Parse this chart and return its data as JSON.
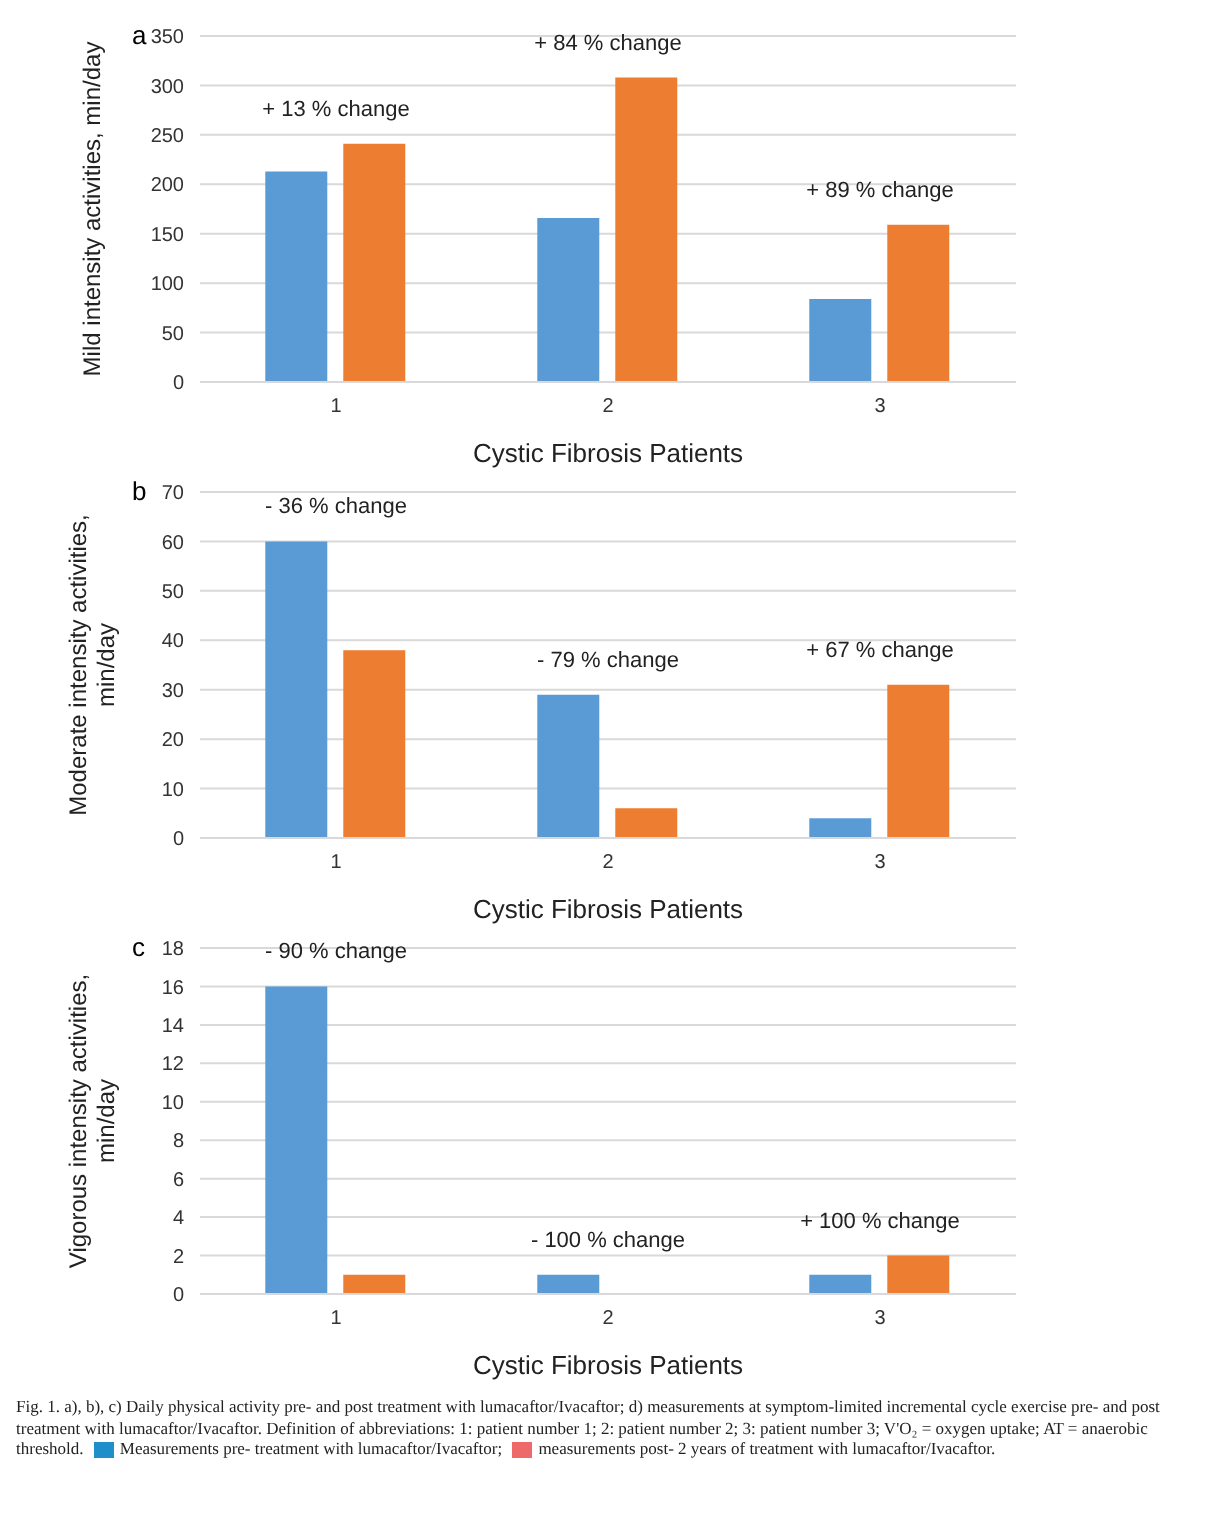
{
  "chart_data": [
    {
      "type": "bar",
      "title": "a",
      "xlabel": "Cystic Fibrosis Patients",
      "ylabel": "Mild intensity activities, min/day",
      "categories": [
        "1",
        "2",
        "3"
      ],
      "series": [
        {
          "color": "#5b9bd5",
          "values": [
            213,
            166,
            84
          ]
        },
        {
          "color": "#ed7d31",
          "values": [
            241,
            308,
            159
          ]
        }
      ],
      "ylim": [
        0,
        350
      ],
      "yticks": [
        0,
        50,
        100,
        150,
        200,
        250,
        300,
        350
      ],
      "grid": "y",
      "annotations": [
        "+ 13 % change",
        "+ 84 % change",
        "+ 89 % change"
      ]
    },
    {
      "type": "bar",
      "title": "b",
      "xlabel": "Cystic Fibrosis Patients",
      "ylabel": "Moderate intensity activities, min/day",
      "categories": [
        "1",
        "2",
        "3"
      ],
      "series": [
        {
          "color": "#5b9bd5",
          "values": [
            60,
            29,
            4
          ]
        },
        {
          "color": "#ed7d31",
          "values": [
            38,
            6,
            31
          ]
        }
      ],
      "ylim": [
        0,
        70
      ],
      "yticks": [
        0,
        10,
        20,
        30,
        40,
        50,
        60,
        70
      ],
      "grid": "y",
      "annotations": [
        "- 36 % change",
        "- 79 % change",
        "+ 67 % change"
      ]
    },
    {
      "type": "bar",
      "title": "c",
      "xlabel": "Cystic Fibrosis Patients",
      "ylabel": "Vigorous intensity activities, min/day",
      "categories": [
        "1",
        "2",
        "3"
      ],
      "series": [
        {
          "color": "#5b9bd5",
          "values": [
            16,
            1,
            1
          ]
        },
        {
          "color": "#ed7d31",
          "values": [
            1,
            0,
            2
          ]
        }
      ],
      "ylim": [
        0,
        18
      ],
      "yticks": [
        0,
        2,
        4,
        6,
        8,
        10,
        12,
        14,
        16,
        18
      ],
      "grid": "y",
      "annotations": [
        "- 90 % change",
        "- 100 % change",
        "+ 100 % change",
        "Fig. 1. a), b), c) Daily physical activity pre- and post treatment with lumacaftor/Ivacaftor; d) measurements at symptom-limited incremental cycle exercise pre- and post treatment with lumacaftor/Ivacaftor. Definition of abbreviations: 1: patient number 1; 2: patient number 2; 3: patient number 3; V'O₂ = oxygen uptake; AT = anaerobic threshold.",
        "Measurements pre- treatment with lumacaftor/Ivacaftor;",
        "measurements post- 2 years of treatment with lumacaftor/Ivacaftor."
      ]
    }
  ]
}
